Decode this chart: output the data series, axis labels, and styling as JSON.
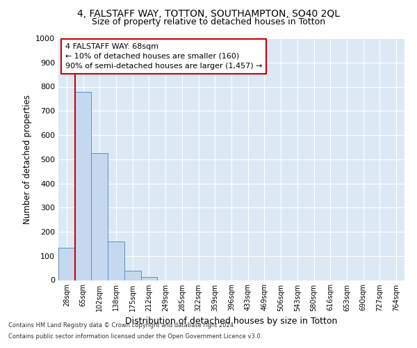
{
  "title1": "4, FALSTAFF WAY, TOTTON, SOUTHAMPTON, SO40 2QL",
  "title2": "Size of property relative to detached houses in Totton",
  "xlabel": "Distribution of detached houses by size in Totton",
  "ylabel": "Number of detached properties",
  "bar_categories": [
    "28sqm",
    "65sqm",
    "102sqm",
    "138sqm",
    "175sqm",
    "212sqm",
    "249sqm",
    "285sqm",
    "322sqm",
    "359sqm",
    "396sqm",
    "433sqm",
    "469sqm",
    "506sqm",
    "543sqm",
    "580sqm",
    "616sqm",
    "653sqm",
    "690sqm",
    "727sqm",
    "764sqm"
  ],
  "bar_values": [
    133,
    778,
    526,
    160,
    38,
    13,
    0,
    0,
    0,
    0,
    0,
    0,
    0,
    0,
    0,
    0,
    0,
    0,
    0,
    0,
    0
  ],
  "bar_color": "#c5d8f0",
  "bar_edge_color": "#5b8ec4",
  "annotation_line1": "4 FALSTAFF WAY: 68sqm",
  "annotation_line2": "← 10% of detached houses are smaller (160)",
  "annotation_line3": "90% of semi-detached houses are larger (1,457) →",
  "annotation_box_color": "#ffffff",
  "annotation_box_edge_color": "#cc0000",
  "property_line_color": "#cc0000",
  "ylim": [
    0,
    1000
  ],
  "yticks": [
    0,
    100,
    200,
    300,
    400,
    500,
    600,
    700,
    800,
    900,
    1000
  ],
  "footnote1": "Contains HM Land Registry data © Crown copyright and database right 2024.",
  "footnote2": "Contains public sector information licensed under the Open Government Licence v3.0.",
  "plot_bg_color": "#dce9f5"
}
